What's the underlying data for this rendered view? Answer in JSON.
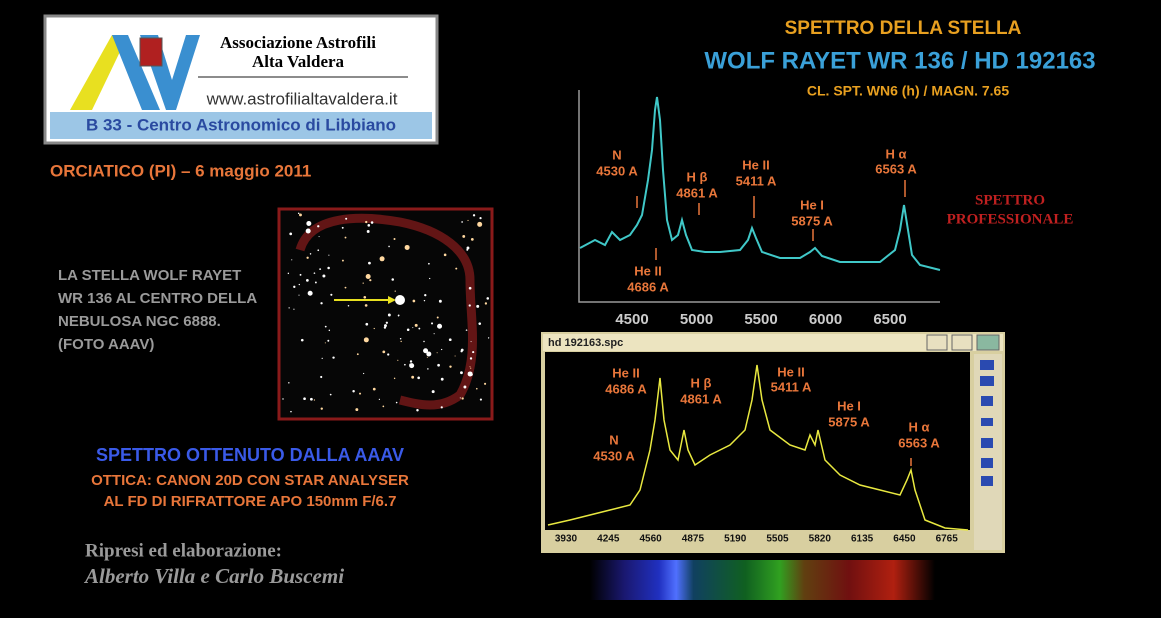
{
  "logo": {
    "line1": "Associazione  Astrofili",
    "line2": "Alta Valdera",
    "url": "www.astrofilialtavaldera.it",
    "footer": "B 33 -  Centro Astronomico di Libbiano"
  },
  "location": "ORCIATICO (PI) – 6 maggio 2011",
  "photo_caption": [
    "LA  STELLA  WOLF  RAYET",
    "WR 136 AL CENTRO DELLA",
    "NEBULOSA  NGC  6888.",
    "(FOTO AAAV)"
  ],
  "aaav": {
    "title": "SPETTRO OTTENUTO DALLA AAAV",
    "lines": [
      "OTTICA: CANON 20D CON STAR ANALYSER",
      "AL FD DI RIFRATTORE APO 150mm F/6.7"
    ]
  },
  "credits": {
    "label": "Ripresi  ed elaborazione:",
    "names": "Alberto Villa e Carlo Buscemi"
  },
  "header": {
    "title": "SPETTRO  DELLA  STELLA",
    "star": "WOLF RAYET  WR 136 / HD 192163",
    "class": "CL. SPT.  WN6 (h)  /  MAGN.  7.65"
  },
  "pro_spectrum": {
    "label": [
      "SPETTRO",
      "PROFESSIONALE"
    ],
    "xticks": [
      4500,
      5000,
      5500,
      6000,
      6500
    ],
    "lines": [
      {
        "name": "N",
        "wavelength": "4530 A"
      },
      {
        "name": "H β",
        "wavelength": "4861 A"
      },
      {
        "name": "He II",
        "wavelength": "5411 A"
      },
      {
        "name": "He I",
        "wavelength": "5875 A"
      },
      {
        "name": "H α",
        "wavelength": "6563 A"
      },
      {
        "name": "He II",
        "wavelength": "4686 A"
      }
    ]
  },
  "aaav_spectrum": {
    "window_title": "hd 192163.spc",
    "xticks": [
      3930,
      4245,
      4560,
      4875,
      5190,
      5505,
      5820,
      6135,
      6450,
      6765
    ],
    "lines": [
      {
        "name": "He II",
        "wavelength": "4686 A"
      },
      {
        "name": "H β",
        "wavelength": "4861 A"
      },
      {
        "name": "He II",
        "wavelength": "5411 A"
      },
      {
        "name": "He I",
        "wavelength": "5875 A"
      },
      {
        "name": "H α",
        "wavelength": "6563 A"
      },
      {
        "name": "N",
        "wavelength": "4530 A"
      }
    ]
  }
}
